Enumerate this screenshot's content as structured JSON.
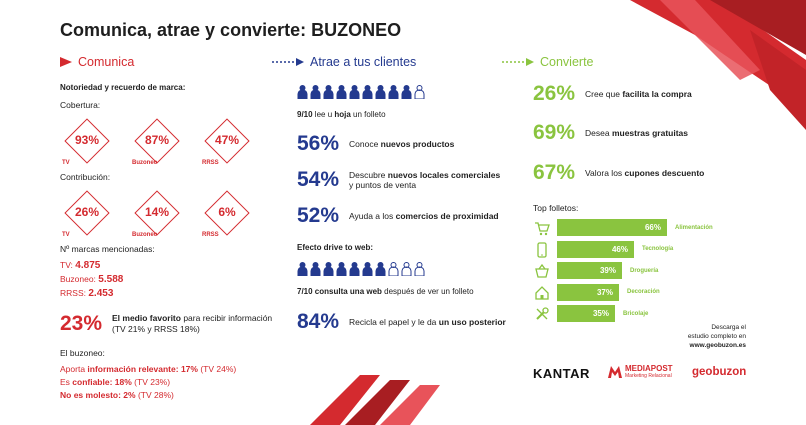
{
  "title": "Comunica, atrae y convierte: BUZONEO",
  "colors": {
    "red": "#d42a2f",
    "navy": "#243a8f",
    "green": "#8ac43f"
  },
  "comunica": {
    "heading": "Comunica",
    "notoriedad": "Notoriedad y recuerdo de marca:",
    "cobertura_label": "Cobertura:",
    "cobertura": [
      {
        "value": "93%",
        "label": "TV"
      },
      {
        "value": "87%",
        "label": "Buzoneo"
      },
      {
        "value": "47%",
        "label": "RRSS"
      }
    ],
    "contribucion_label": "Contribución:",
    "contribucion": [
      {
        "value": "26%",
        "label": "TV"
      },
      {
        "value": "14%",
        "label": "Buzoneo"
      },
      {
        "value": "6%",
        "label": "RRSS"
      }
    ],
    "marcas_label": "Nº marcas mencionadas:",
    "marcas": [
      {
        "label": "TV:",
        "value": "4.875"
      },
      {
        "label": "Buzoneo:",
        "value": "5.588"
      },
      {
        "label": "RRSS:",
        "value": "2.453"
      }
    ],
    "favorito_num": "23%",
    "favorito_bold": "El medio favorito",
    "favorito_rest": " para recibir información",
    "favorito_line2": "(TV 21% y RRSS 18%)",
    "buzoneo_label": "El buzoneo:",
    "buzoneo_1a": "Aporta ",
    "buzoneo_1b": "información relevante:",
    "buzoneo_1c": " 17%",
    "buzoneo_1d": " (TV 24%)",
    "buzoneo_2a": "Es ",
    "buzoneo_2b": "confiable:",
    "buzoneo_2c": " 18%",
    "buzoneo_2d": " (TV 23%)",
    "buzoneo_3b": "No es molesto:",
    "buzoneo_3c": " 2%",
    "buzoneo_3d": " (TV 28%)"
  },
  "atrae": {
    "heading": "Atrae a tus clientes",
    "people1_filled": 9,
    "people1_total": 10,
    "people1_a": "9/10",
    "people1_b": " lee u ",
    "people1_c": "hoja",
    "people1_d": " un folleto",
    "stats": [
      {
        "num": "56%",
        "pre": "Conoce ",
        "bold": "nuevos productos",
        "post": "",
        "line2": ""
      },
      {
        "num": "54%",
        "pre": "Descubre ",
        "bold": "nuevos locales comerciales",
        "post": "",
        "line2": "y puntos de venta"
      },
      {
        "num": "52%",
        "pre": "Ayuda a los ",
        "bold": "comercios de proximidad",
        "post": "",
        "line2": ""
      }
    ],
    "drive_label": "Efecto drive to web:",
    "people2_filled": 7,
    "people2_total": 10,
    "drive_a": "7/10",
    "drive_b": " consulta una web",
    "drive_c": " después de ver un folleto",
    "recicla_num": "84%",
    "recicla_a": "Recicla el papel y le da ",
    "recicla_b": "un uso posterior"
  },
  "convierte": {
    "heading": "Convierte",
    "stats": [
      {
        "num": "26%",
        "pre": "Cree que ",
        "bold": "facilita la compra"
      },
      {
        "num": "69%",
        "pre": "Desea ",
        "bold": "muestras gratuitas"
      },
      {
        "num": "67%",
        "pre": "Valora los ",
        "bold": "cupones descuento"
      }
    ],
    "top_label": "Top folletos:",
    "bars": [
      {
        "value": 66,
        "text": "66%",
        "category": "Alimentación",
        "icon": "shopping-cart-icon"
      },
      {
        "value": 46,
        "text": "46%",
        "category": "Tecnología",
        "icon": "smartphone-icon"
      },
      {
        "value": 39,
        "text": "39%",
        "category": "Droguería",
        "icon": "basket-icon"
      },
      {
        "value": 37,
        "text": "37%",
        "category": "Decoración",
        "icon": "house-icon"
      },
      {
        "value": 35,
        "text": "35%",
        "category": "Bricolaje",
        "icon": "tools-icon"
      }
    ],
    "download_1": "Descarga el",
    "download_2": "estudio completo en",
    "download_3": "www.geobuzon.es"
  },
  "logos": {
    "kantar": "KANTAR",
    "mediapost": "MEDIAPOST",
    "mediapost_sub": "Marketing Relacional",
    "geobuzon": "geobuzon"
  }
}
